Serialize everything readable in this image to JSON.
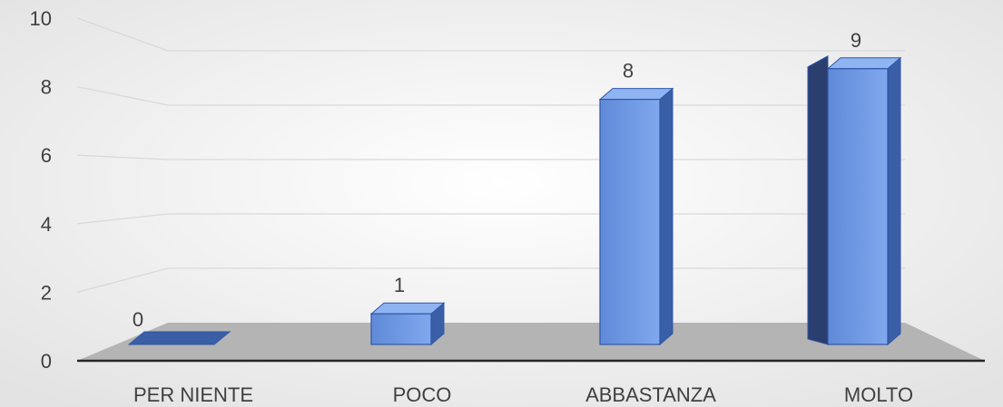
{
  "chart_data": {
    "type": "bar",
    "style": "3d-column",
    "categories": [
      "PER NIENTE",
      "POCO",
      "ABBASTANZA",
      "MOLTO"
    ],
    "values": [
      0,
      1,
      8,
      9
    ],
    "data_labels": [
      "0",
      "1",
      "8",
      "9"
    ],
    "y_ticks": [
      "0",
      "2",
      "4",
      "6",
      "8",
      "10"
    ],
    "ylim": [
      0,
      10
    ],
    "title": "",
    "xlabel": "",
    "ylabel": "",
    "grid": true,
    "legend": "none",
    "colors": {
      "bar_front": "#6f9be6",
      "bar_side": "#3a5fa6",
      "bar_dark_side": "#2a3f6e",
      "bar_top": "#8fb4f2",
      "bar_stroke": "#2f56a8",
      "floor": "#b4b4b4",
      "gridline": "#d9d9d9",
      "axis_line": "#262626",
      "background_center": "#ffffff",
      "background_edge": "#e6e6e6"
    }
  }
}
